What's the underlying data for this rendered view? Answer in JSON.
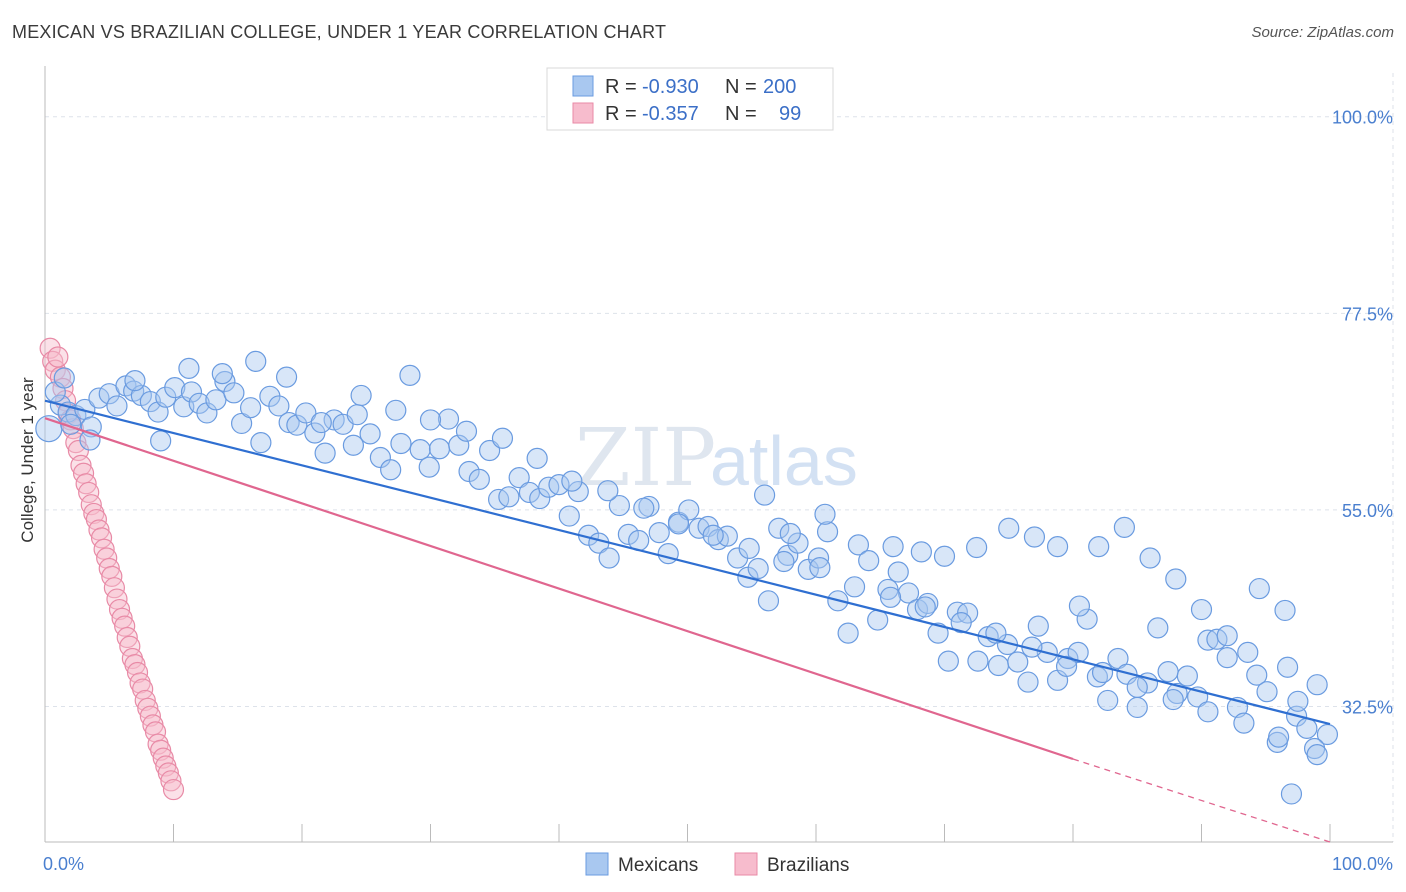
{
  "title": "MEXICAN VS BRAZILIAN COLLEGE, UNDER 1 YEAR CORRELATION CHART",
  "source": "Source: ZipAtlas.com",
  "watermark": {
    "zip": "ZIP",
    "atlas": "atlas"
  },
  "legend": {
    "rows": [
      {
        "r_label": "R =",
        "r_value": "-0.930",
        "n_label": "N =",
        "n_value": "200",
        "color": "#a9c8f0",
        "stroke": "#6a9be0"
      },
      {
        "r_label": "R =",
        "r_value": "-0.357",
        "n_label": "N =",
        "n_value": "99",
        "color": "#f7bccd",
        "stroke": "#e88aa6"
      }
    ]
  },
  "chart_data": {
    "type": "scatter",
    "title": "MEXICAN VS BRAZILIAN COLLEGE, UNDER 1 YEAR CORRELATION CHART",
    "xlabel": "",
    "ylabel": "College, Under 1 year",
    "xlim": [
      0,
      100
    ],
    "ylim": [
      17,
      105
    ],
    "x_tick_labels": [
      "0.0%",
      "100.0%"
    ],
    "y_ticks": [
      32.5,
      55.0,
      77.5,
      100.0
    ],
    "y_tick_labels": [
      "32.5%",
      "55.0%",
      "77.5%",
      "100.0%"
    ],
    "grid": true,
    "legend_position": "top-center",
    "series": [
      {
        "name": "Mexicans",
        "color": "#6a9be0",
        "fill": "#a9c8f0",
        "trend": {
          "x": [
            0,
            100
          ],
          "y": [
            67.5,
            30.5
          ]
        },
        "points": [
          [
            0.3,
            64.3
          ],
          [
            1.2,
            67.0
          ],
          [
            1.8,
            66.2
          ],
          [
            2.4,
            65.8
          ],
          [
            3.1,
            66.5
          ],
          [
            3.6,
            64.5
          ],
          [
            4.2,
            67.8
          ],
          [
            5.0,
            68.3
          ],
          [
            5.6,
            66.9
          ],
          [
            6.3,
            69.2
          ],
          [
            6.9,
            68.6
          ],
          [
            7.5,
            68.1
          ],
          [
            8.2,
            67.4
          ],
          [
            8.8,
            66.2
          ],
          [
            9.4,
            67.9
          ],
          [
            10.1,
            69.0
          ],
          [
            10.8,
            66.8
          ],
          [
            11.4,
            68.5
          ],
          [
            12.0,
            67.2
          ],
          [
            12.6,
            66.1
          ],
          [
            13.3,
            67.6
          ],
          [
            14.0,
            69.7
          ],
          [
            14.7,
            68.4
          ],
          [
            15.3,
            64.9
          ],
          [
            16.0,
            66.7
          ],
          [
            16.8,
            62.7
          ],
          [
            17.5,
            68.0
          ],
          [
            18.2,
            66.9
          ],
          [
            19.0,
            65.0
          ],
          [
            19.6,
            64.7
          ],
          [
            20.3,
            66.1
          ],
          [
            21.0,
            63.8
          ],
          [
            21.8,
            61.5
          ],
          [
            22.5,
            65.3
          ],
          [
            23.2,
            64.8
          ],
          [
            24.0,
            62.4
          ],
          [
            24.6,
            68.1
          ],
          [
            25.3,
            63.7
          ],
          [
            26.1,
            61.0
          ],
          [
            26.9,
            59.6
          ],
          [
            27.7,
            62.6
          ],
          [
            28.4,
            70.4
          ],
          [
            29.2,
            61.9
          ],
          [
            29.9,
            59.9
          ],
          [
            30.7,
            62.0
          ],
          [
            31.4,
            65.4
          ],
          [
            32.2,
            62.4
          ],
          [
            33.0,
            59.4
          ],
          [
            33.8,
            58.5
          ],
          [
            34.6,
            61.8
          ],
          [
            35.3,
            56.2
          ],
          [
            36.1,
            56.5
          ],
          [
            36.9,
            58.7
          ],
          [
            37.7,
            57.0
          ],
          [
            38.5,
            56.3
          ],
          [
            39.2,
            57.6
          ],
          [
            40.0,
            57.9
          ],
          [
            40.8,
            54.3
          ],
          [
            41.5,
            57.1
          ],
          [
            42.3,
            52.1
          ],
          [
            43.1,
            51.2
          ],
          [
            43.9,
            49.5
          ],
          [
            44.7,
            55.5
          ],
          [
            45.4,
            52.2
          ],
          [
            46.2,
            51.5
          ],
          [
            47.0,
            55.4
          ],
          [
            47.8,
            52.4
          ],
          [
            48.5,
            50.0
          ],
          [
            49.3,
            53.6
          ],
          [
            50.1,
            55.0
          ],
          [
            50.9,
            52.9
          ],
          [
            51.6,
            53.1
          ],
          [
            52.4,
            51.6
          ],
          [
            53.1,
            52.0
          ],
          [
            53.9,
            49.5
          ],
          [
            54.7,
            47.3
          ],
          [
            55.5,
            48.3
          ],
          [
            56.3,
            44.6
          ],
          [
            57.1,
            52.9
          ],
          [
            57.8,
            49.8
          ],
          [
            58.6,
            51.2
          ],
          [
            59.4,
            48.2
          ],
          [
            60.2,
            49.5
          ],
          [
            60.9,
            52.5
          ],
          [
            61.7,
            44.6
          ],
          [
            62.5,
            40.9
          ],
          [
            63.3,
            51.0
          ],
          [
            64.1,
            49.2
          ],
          [
            64.8,
            42.4
          ],
          [
            65.6,
            45.9
          ],
          [
            66.4,
            47.9
          ],
          [
            67.2,
            45.5
          ],
          [
            67.9,
            43.6
          ],
          [
            68.7,
            44.3
          ],
          [
            69.5,
            40.9
          ],
          [
            70.3,
            37.7
          ],
          [
            71.0,
            43.3
          ],
          [
            71.8,
            43.2
          ],
          [
            72.6,
            37.7
          ],
          [
            73.4,
            40.5
          ],
          [
            74.2,
            37.2
          ],
          [
            74.9,
            39.6
          ],
          [
            75.7,
            37.6
          ],
          [
            76.5,
            35.3
          ],
          [
            77.3,
            41.7
          ],
          [
            78.0,
            38.7
          ],
          [
            78.8,
            35.5
          ],
          [
            79.6,
            38.0
          ],
          [
            80.4,
            38.7
          ],
          [
            81.1,
            42.5
          ],
          [
            81.9,
            35.9
          ],
          [
            82.7,
            33.2
          ],
          [
            83.5,
            38.0
          ],
          [
            84.2,
            36.2
          ],
          [
            85.0,
            32.4
          ],
          [
            85.8,
            35.2
          ],
          [
            86.6,
            41.5
          ],
          [
            87.4,
            36.5
          ],
          [
            88.1,
            34.0
          ],
          [
            88.9,
            36.0
          ],
          [
            89.7,
            33.6
          ],
          [
            90.5,
            40.1
          ],
          [
            91.2,
            40.2
          ],
          [
            92.0,
            38.1
          ],
          [
            92.8,
            32.4
          ],
          [
            93.6,
            38.7
          ],
          [
            94.3,
            36.1
          ],
          [
            95.1,
            34.2
          ],
          [
            95.9,
            28.4
          ],
          [
            96.7,
            37.0
          ],
          [
            97.4,
            31.4
          ],
          [
            98.2,
            30.0
          ],
          [
            99.0,
            35.0
          ],
          [
            99.8,
            29.3
          ],
          [
            2.0,
            64.8
          ],
          [
            3.5,
            63.0
          ],
          [
            7.0,
            69.8
          ],
          [
            9.0,
            62.9
          ],
          [
            11.2,
            71.2
          ],
          [
            13.8,
            70.6
          ],
          [
            16.4,
            72.0
          ],
          [
            18.8,
            70.2
          ],
          [
            21.5,
            65.0
          ],
          [
            24.3,
            65.9
          ],
          [
            27.3,
            66.4
          ],
          [
            30.0,
            65.3
          ],
          [
            32.8,
            64.0
          ],
          [
            35.6,
            63.2
          ],
          [
            38.3,
            60.9
          ],
          [
            41.0,
            58.3
          ],
          [
            43.8,
            57.2
          ],
          [
            46.6,
            55.2
          ],
          [
            49.3,
            53.4
          ],
          [
            52.0,
            52.1
          ],
          [
            54.8,
            50.6
          ],
          [
            57.5,
            49.1
          ],
          [
            60.3,
            48.4
          ],
          [
            63.0,
            46.2
          ],
          [
            65.8,
            45.0
          ],
          [
            68.5,
            43.9
          ],
          [
            71.3,
            42.1
          ],
          [
            74.0,
            40.9
          ],
          [
            76.8,
            39.3
          ],
          [
            79.5,
            37.1
          ],
          [
            82.3,
            36.4
          ],
          [
            85.0,
            34.7
          ],
          [
            87.8,
            33.3
          ],
          [
            90.5,
            31.9
          ],
          [
            93.3,
            30.6
          ],
          [
            96.0,
            29.0
          ],
          [
            98.8,
            27.7
          ],
          [
            56.0,
            56.7
          ],
          [
            58.0,
            52.3
          ],
          [
            60.7,
            54.5
          ],
          [
            66.0,
            50.8
          ],
          [
            68.2,
            50.2
          ],
          [
            70.0,
            49.7
          ],
          [
            72.5,
            50.7
          ],
          [
            75.0,
            52.9
          ],
          [
            77.0,
            51.9
          ],
          [
            78.8,
            50.8
          ],
          [
            80.5,
            44.0
          ],
          [
            82.0,
            50.8
          ],
          [
            84.0,
            53.0
          ],
          [
            86.0,
            49.5
          ],
          [
            88.0,
            47.1
          ],
          [
            90.0,
            43.6
          ],
          [
            92.0,
            40.6
          ],
          [
            94.5,
            46.0
          ],
          [
            96.5,
            43.5
          ],
          [
            97.0,
            22.5
          ],
          [
            97.5,
            33.1
          ],
          [
            99.0,
            27.0
          ],
          [
            0.8,
            68.5
          ],
          [
            1.5,
            70.1
          ]
        ]
      },
      {
        "name": "Brazilians",
        "color": "#e88aa6",
        "fill": "#f7bccd",
        "trend": {
          "x": [
            0,
            80
          ],
          "y": [
            65.5,
            26.5
          ]
        },
        "trend_dashed": {
          "x": [
            80,
            100
          ],
          "y": [
            26.5,
            17.0
          ]
        },
        "points": [
          [
            0.4,
            73.5
          ],
          [
            0.6,
            72.0
          ],
          [
            0.8,
            71.0
          ],
          [
            1.0,
            72.5
          ],
          [
            1.2,
            70.2
          ],
          [
            1.4,
            68.9
          ],
          [
            1.6,
            67.5
          ],
          [
            1.8,
            66.0
          ],
          [
            2.0,
            65.3
          ],
          [
            2.2,
            64.3
          ],
          [
            2.4,
            62.7
          ],
          [
            2.6,
            61.8
          ],
          [
            2.8,
            60.1
          ],
          [
            3.0,
            59.2
          ],
          [
            3.2,
            58.0
          ],
          [
            3.4,
            57.0
          ],
          [
            3.6,
            55.6
          ],
          [
            3.8,
            54.6
          ],
          [
            4.0,
            53.9
          ],
          [
            4.2,
            52.7
          ],
          [
            4.4,
            51.8
          ],
          [
            4.6,
            50.5
          ],
          [
            4.8,
            49.5
          ],
          [
            5.0,
            48.3
          ],
          [
            5.2,
            47.4
          ],
          [
            5.4,
            46.1
          ],
          [
            5.6,
            44.8
          ],
          [
            5.8,
            43.6
          ],
          [
            6.0,
            42.6
          ],
          [
            6.2,
            41.7
          ],
          [
            6.4,
            40.4
          ],
          [
            6.6,
            39.4
          ],
          [
            6.8,
            38.0
          ],
          [
            7.0,
            37.3
          ],
          [
            7.2,
            36.4
          ],
          [
            7.4,
            35.2
          ],
          [
            7.6,
            34.5
          ],
          [
            7.8,
            33.2
          ],
          [
            8.0,
            32.3
          ],
          [
            8.2,
            31.4
          ],
          [
            8.4,
            30.4
          ],
          [
            8.6,
            29.6
          ],
          [
            8.8,
            28.2
          ],
          [
            9.0,
            27.5
          ],
          [
            9.2,
            26.6
          ],
          [
            9.4,
            25.7
          ],
          [
            9.6,
            24.9
          ],
          [
            9.8,
            24.0
          ],
          [
            10.0,
            23.0
          ]
        ]
      }
    ]
  },
  "bottom_legend": [
    {
      "label": "Mexicans",
      "fill": "#a9c8f0",
      "stroke": "#6a9be0"
    },
    {
      "label": "Brazilians",
      "fill": "#f7bccd",
      "stroke": "#e88aa6"
    }
  ]
}
